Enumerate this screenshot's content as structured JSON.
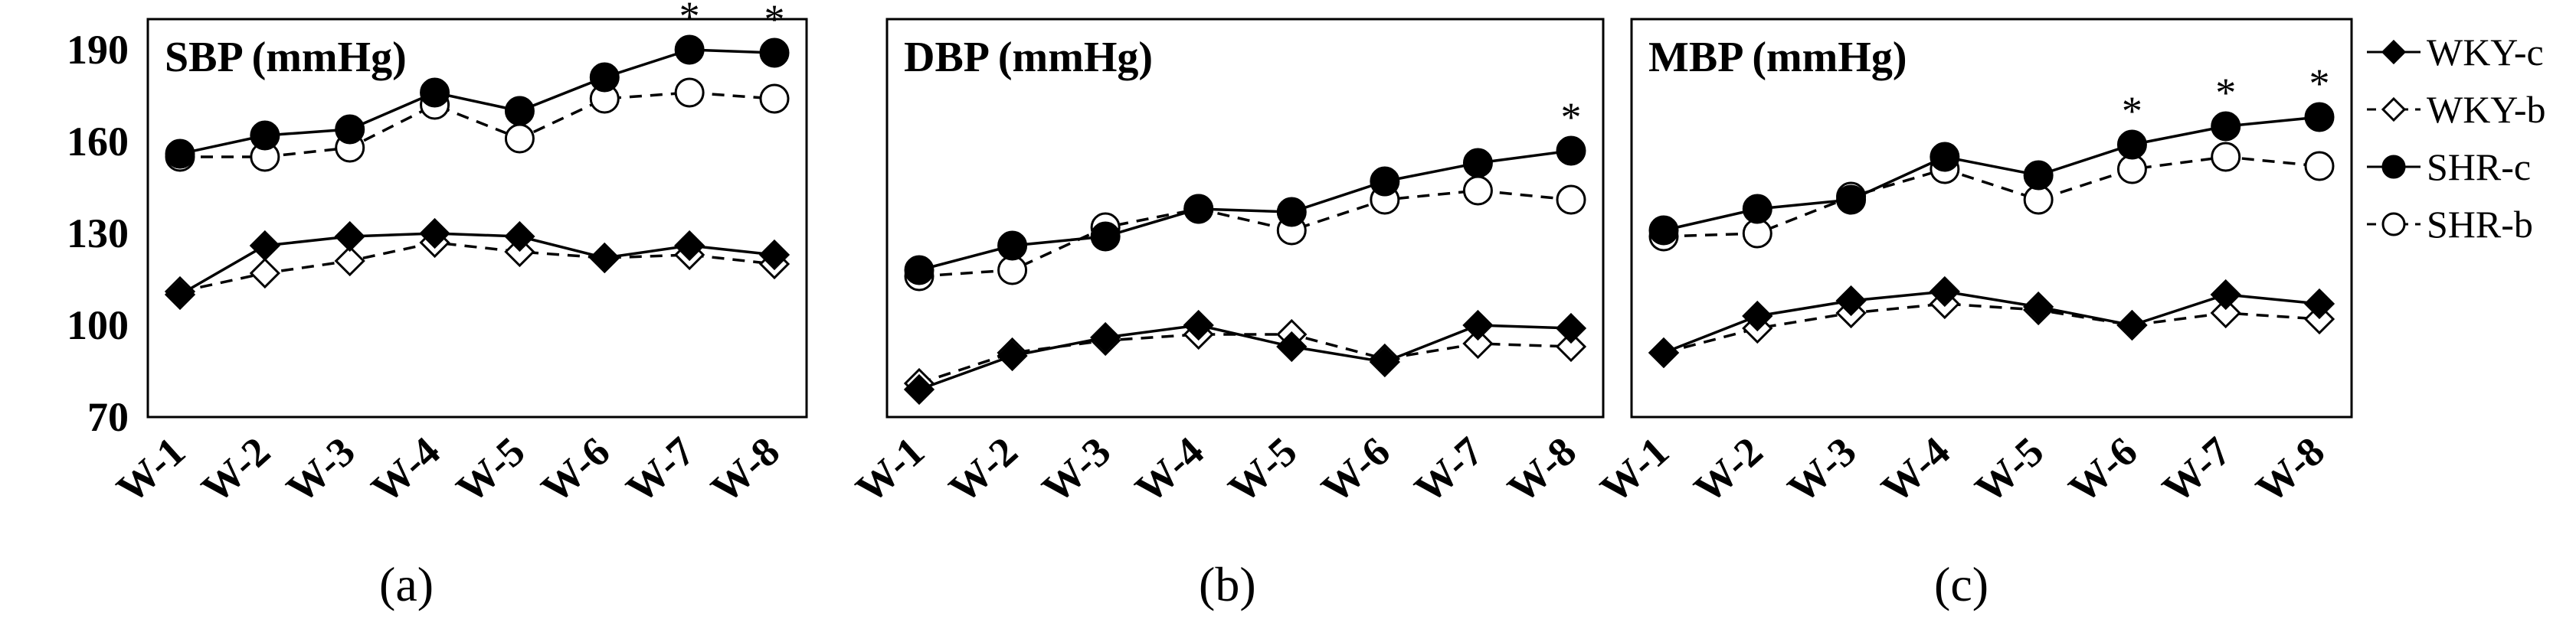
{
  "chart_data": [
    {
      "type": "line",
      "title": "SBP (mmHg)",
      "panel_label": "(a)",
      "categories": [
        "W-1",
        "W-2",
        "W-3",
        "W-4",
        "W-5",
        "W-6",
        "W-7",
        "W-8"
      ],
      "ylim": [
        70,
        200
      ],
      "yticks": [
        70,
        100,
        130,
        160,
        190
      ],
      "series": [
        {
          "name": "WKY-c",
          "values": [
            110,
            126,
            129,
            130,
            129,
            122,
            126,
            123
          ]
        },
        {
          "name": "WKY-b",
          "values": [
            111,
            117,
            121,
            127,
            124,
            122,
            123,
            120
          ]
        },
        {
          "name": "SHR-c",
          "values": [
            156,
            162,
            164,
            176,
            170,
            181,
            190,
            189
          ]
        },
        {
          "name": "SHR-b",
          "values": [
            155,
            155,
            158,
            172,
            161,
            174,
            176,
            174
          ]
        }
      ],
      "significance": [
        "",
        "",
        "",
        "",
        "",
        "",
        "*",
        "*"
      ]
    },
    {
      "type": "line",
      "title": "DBP (mmHg)",
      "panel_label": "(b)",
      "categories": [
        "W-1",
        "W-2",
        "W-3",
        "W-4",
        "W-5",
        "W-6",
        "W-7",
        "W-8"
      ],
      "ylim": [
        70,
        200
      ],
      "yticks": [
        70,
        100,
        130,
        160,
        190
      ],
      "series": [
        {
          "name": "WKY-c",
          "values": [
            79,
            90,
            96,
            100,
            93,
            88,
            100,
            99
          ]
        },
        {
          "name": "WKY-b",
          "values": [
            81,
            91,
            95,
            97,
            97,
            89,
            94,
            93
          ]
        },
        {
          "name": "SHR-c",
          "values": [
            118,
            126,
            129,
            138,
            137,
            147,
            153,
            157
          ]
        },
        {
          "name": "SHR-b",
          "values": [
            116,
            118,
            132,
            138,
            131,
            141,
            144,
            141
          ]
        }
      ],
      "significance": [
        "",
        "",
        "",
        "",
        "",
        "",
        "",
        "*"
      ]
    },
    {
      "type": "line",
      "title": "MBP (mmHg)",
      "panel_label": "(c)",
      "categories": [
        "W-1",
        "W-2",
        "W-3",
        "W-4",
        "W-5",
        "W-6",
        "W-7",
        "W-8"
      ],
      "ylim": [
        70,
        200
      ],
      "yticks": [
        70,
        100,
        130,
        160,
        190
      ],
      "series": [
        {
          "name": "WKY-c",
          "values": [
            91,
            103,
            108,
            111,
            106,
            100,
            110,
            107
          ]
        },
        {
          "name": "WKY-b",
          "values": [
            91,
            99,
            104,
            107,
            105,
            100,
            104,
            102
          ]
        },
        {
          "name": "SHR-c",
          "values": [
            131,
            138,
            141,
            155,
            149,
            159,
            165,
            168
          ]
        },
        {
          "name": "SHR-b",
          "values": [
            129,
            130,
            142,
            151,
            141,
            151,
            155,
            152
          ]
        }
      ],
      "significance": [
        "",
        "",
        "",
        "",
        "",
        "*",
        "*",
        "*"
      ]
    }
  ],
  "legend": [
    {
      "name": "WKY-c",
      "marker": "diamond",
      "fill": "filled",
      "line": "solid"
    },
    {
      "name": "WKY-b",
      "marker": "diamond",
      "fill": "open",
      "line": "dashed"
    },
    {
      "name": "SHR-c",
      "marker": "circle",
      "fill": "filled",
      "line": "solid"
    },
    {
      "name": "SHR-b",
      "marker": "circle",
      "fill": "open",
      "line": "dashed"
    }
  ],
  "colors": {
    "ink": "#000000",
    "background": "#ffffff"
  }
}
